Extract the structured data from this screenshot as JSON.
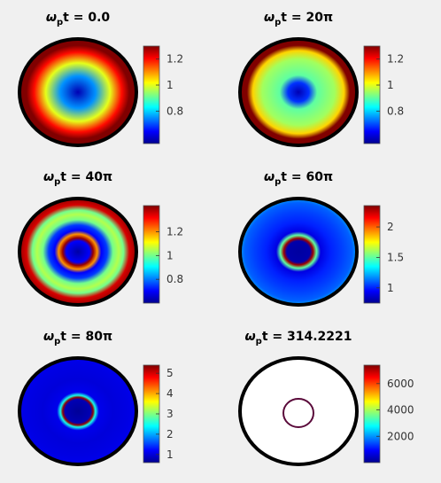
{
  "colors": {
    "background": "#f0f0f0",
    "outline": "#000000",
    "colormap": [
      "#00008f",
      "#0000ff",
      "#0080ff",
      "#00ffff",
      "#80ff80",
      "#ffff00",
      "#ff8000",
      "#ff0000",
      "#800000"
    ]
  },
  "chart_data": [
    {
      "type": "heatmap",
      "title": {
        "symbol": "ω",
        "subscript": "p",
        "rest": "t = 0.0"
      },
      "colorbar": {
        "range": [
          0.55,
          1.3
        ],
        "ticks": [
          0.8,
          1,
          1.2
        ],
        "tick_labels": [
          "0.8",
          "1",
          "1.2"
        ]
      },
      "radial_profile": [
        [
          0,
          0.58
        ],
        [
          0.3,
          0.75
        ],
        [
          0.55,
          1.0
        ],
        [
          0.75,
          1.2
        ],
        [
          0.88,
          1.3
        ],
        [
          1.0,
          1.3
        ]
      ],
      "ring": false
    },
    {
      "type": "heatmap",
      "title": {
        "symbol": "ω",
        "subscript": "p",
        "rest": "t = 20π"
      },
      "colorbar": {
        "range": [
          0.55,
          1.3
        ],
        "ticks": [
          0.8,
          1,
          1.2
        ],
        "tick_labels": [
          "0.8",
          "1",
          "1.2"
        ]
      },
      "radial_profile": [
        [
          0,
          0.58
        ],
        [
          0.18,
          0.68
        ],
        [
          0.32,
          0.9
        ],
        [
          0.62,
          0.95
        ],
        [
          0.78,
          1.05
        ],
        [
          0.88,
          1.3
        ],
        [
          1.0,
          1.3
        ]
      ],
      "ring": false
    },
    {
      "type": "heatmap",
      "title": {
        "symbol": "ω",
        "subscript": "p",
        "rest": "t = 40π"
      },
      "colorbar": {
        "range": [
          0.6,
          1.42
        ],
        "ticks": [
          0.8,
          1,
          1.2
        ],
        "tick_labels": [
          "0.8",
          "1",
          "1.2"
        ]
      },
      "radial_profile": [
        [
          0,
          0.62
        ],
        [
          0.2,
          0.7
        ],
        [
          0.26,
          1.4
        ],
        [
          0.33,
          1.2
        ],
        [
          0.4,
          0.7
        ],
        [
          0.5,
          0.75
        ],
        [
          0.6,
          1.0
        ],
        [
          0.7,
          1.05
        ],
        [
          0.78,
          1.0
        ],
        [
          0.88,
          1.35
        ],
        [
          1.0,
          1.4
        ]
      ],
      "ring": false
    },
    {
      "type": "heatmap",
      "title": {
        "symbol": "ω",
        "subscript": "p",
        "rest": "t = 60π"
      },
      "colorbar": {
        "range": [
          0.75,
          2.35
        ],
        "ticks": [
          1,
          1.5,
          2
        ],
        "tick_labels": [
          "1",
          "1.5",
          "2"
        ]
      },
      "radial_profile": [
        [
          0,
          0.78
        ],
        [
          0.2,
          0.8
        ],
        [
          0.25,
          2.3
        ],
        [
          0.31,
          1.5
        ],
        [
          0.38,
          0.9
        ],
        [
          0.55,
          1.0
        ],
        [
          0.75,
          1.05
        ],
        [
          0.92,
          1.1
        ],
        [
          1.0,
          1.2
        ]
      ],
      "ring": false
    },
    {
      "type": "heatmap",
      "title": {
        "symbol": "ω",
        "subscript": "p",
        "rest": "t = 80π"
      },
      "colorbar": {
        "range": [
          0.6,
          5.4
        ],
        "ticks": [
          1,
          2,
          3,
          4,
          5
        ],
        "tick_labels": [
          "1",
          "2",
          "3",
          "4",
          "5"
        ]
      },
      "radial_profile": [
        [
          0,
          0.65
        ],
        [
          0.22,
          0.8
        ],
        [
          0.26,
          5.3
        ],
        [
          0.3,
          2.5
        ],
        [
          0.36,
          1.1
        ],
        [
          0.6,
          1.0
        ],
        [
          0.85,
          1.05
        ],
        [
          1.0,
          1.1
        ]
      ],
      "ring": false
    },
    {
      "type": "heatmap",
      "title": {
        "symbol": "ω",
        "subscript": "p",
        "rest": "t = 314.2221"
      },
      "colorbar": {
        "range": [
          0,
          7400
        ],
        "ticks": [
          2000,
          4000,
          6000
        ],
        "tick_labels": [
          "2000",
          "4000",
          "6000"
        ]
      },
      "radial_profile": [
        [
          0,
          0
        ],
        [
          1,
          0
        ]
      ],
      "ring": true
    }
  ]
}
